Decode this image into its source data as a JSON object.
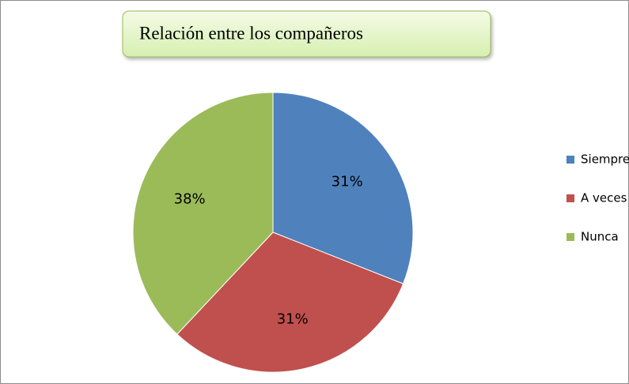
{
  "chart_data": {
    "type": "pie",
    "title": "Relación entre los compañeros",
    "categories": [
      "Siempre",
      "A veces",
      "Nunca"
    ],
    "values": [
      31,
      31,
      38
    ],
    "value_labels": [
      "31%",
      "31%",
      "38%"
    ],
    "colors": [
      "#4f81bd",
      "#c0504d",
      "#9bbb59"
    ],
    "legend": "right"
  }
}
